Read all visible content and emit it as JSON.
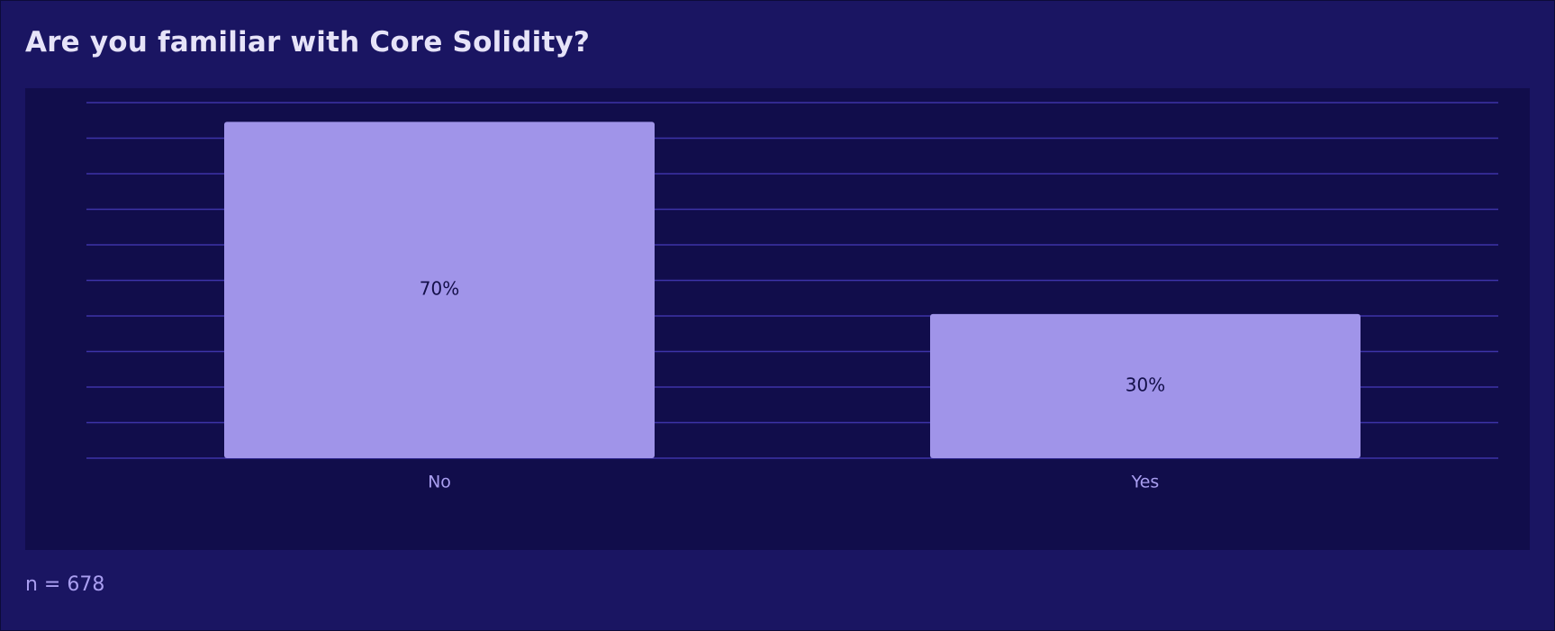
{
  "chart_data": {
    "type": "bar",
    "title": "Are you familiar with Core Solidity?",
    "categories": [
      "No",
      "Yes"
    ],
    "values": [
      70,
      30
    ],
    "value_labels": [
      "70%",
      "30%"
    ],
    "ylim": [
      0,
      74
    ],
    "grid": true,
    "legend": "none",
    "footnote": "n = 678",
    "colors": {
      "page_background": "#1a1562",
      "plot_background": "#110d4b",
      "bar": "#a094e9",
      "gridline": "#3d33a8",
      "value_label": "#14104a",
      "tick_label": "#a99ef0",
      "title": "#e6e3f8"
    }
  }
}
